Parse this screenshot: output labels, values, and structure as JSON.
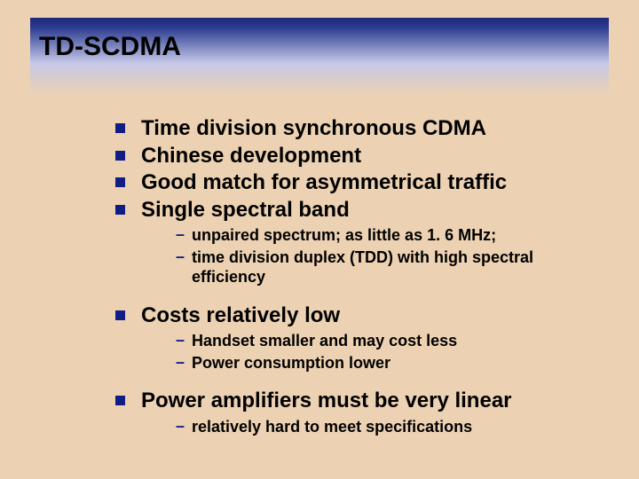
{
  "title": "TD-SCDMA",
  "colors": {
    "background": "#ecd2b2",
    "bullet": "#111d87",
    "text": "#000000",
    "band_top": "#1e2a7a",
    "band_mid": "#c5c8e8"
  },
  "fonts": {
    "title_size": 30,
    "l1_size": 24,
    "l2_size": 18,
    "family": "Arial"
  },
  "bullets": [
    {
      "text": "Time division synchronous CDMA"
    },
    {
      "text": "Chinese development"
    },
    {
      "text": "Good match for asymmetrical traffic"
    },
    {
      "text": "Single spectral band",
      "sub": [
        "unpaired spectrum; as little as 1. 6 MHz;",
        "time division duplex (TDD) with high spectral efficiency"
      ]
    },
    {
      "text": "Costs relatively low",
      "sub": [
        "Handset smaller and may cost less",
        "Power consumption lower"
      ]
    },
    {
      "text": "Power amplifiers must be very linear",
      "sub": [
        "relatively hard to meet specifications"
      ]
    }
  ]
}
